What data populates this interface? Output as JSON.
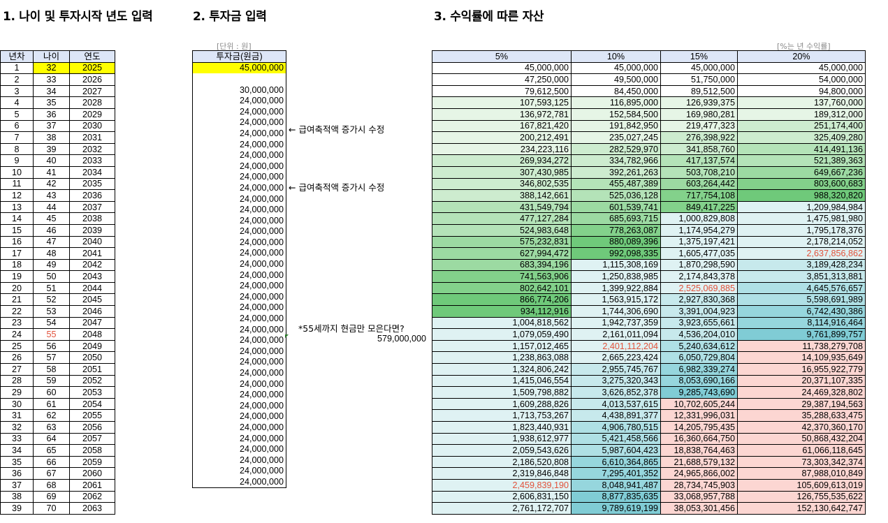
{
  "sections": {
    "s1_title": "1. 나이 및 투자시작 년도 입력",
    "s2_title": "2. 투자금 입력",
    "s3_title": "3. 수익률에 따른 자산",
    "unit_won": "[단위 : 원]",
    "unit_rate": "[%는 년 수익률]"
  },
  "left_table": {
    "headers": [
      "년차",
      "나이",
      "연도"
    ],
    "rows": [
      [
        "1",
        "32",
        "2025"
      ],
      [
        "2",
        "33",
        "2026"
      ],
      [
        "3",
        "34",
        "2027"
      ],
      [
        "4",
        "35",
        "2028"
      ],
      [
        "5",
        "36",
        "2029"
      ],
      [
        "6",
        "37",
        "2030"
      ],
      [
        "7",
        "38",
        "2031"
      ],
      [
        "8",
        "39",
        "2032"
      ],
      [
        "9",
        "40",
        "2033"
      ],
      [
        "10",
        "41",
        "2034"
      ],
      [
        "11",
        "42",
        "2035"
      ],
      [
        "12",
        "43",
        "2036"
      ],
      [
        "13",
        "44",
        "2037"
      ],
      [
        "14",
        "45",
        "2038"
      ],
      [
        "15",
        "46",
        "2039"
      ],
      [
        "16",
        "47",
        "2040"
      ],
      [
        "17",
        "48",
        "2041"
      ],
      [
        "18",
        "49",
        "2042"
      ],
      [
        "19",
        "50",
        "2043"
      ],
      [
        "20",
        "51",
        "2044"
      ],
      [
        "21",
        "52",
        "2045"
      ],
      [
        "22",
        "53",
        "2046"
      ],
      [
        "23",
        "54",
        "2047"
      ],
      [
        "24",
        "55",
        "2048"
      ],
      [
        "25",
        "56",
        "2049"
      ],
      [
        "26",
        "57",
        "2050"
      ],
      [
        "27",
        "58",
        "2051"
      ],
      [
        "28",
        "59",
        "2052"
      ],
      [
        "29",
        "60",
        "2053"
      ],
      [
        "30",
        "61",
        "2054"
      ],
      [
        "31",
        "62",
        "2055"
      ],
      [
        "32",
        "63",
        "2056"
      ],
      [
        "33",
        "64",
        "2057"
      ],
      [
        "34",
        "65",
        "2058"
      ],
      [
        "35",
        "66",
        "2059"
      ],
      [
        "36",
        "67",
        "2060"
      ],
      [
        "37",
        "68",
        "2061"
      ],
      [
        "38",
        "69",
        "2062"
      ],
      [
        "39",
        "70",
        "2063"
      ]
    ]
  },
  "invest_table": {
    "header": "투자금(원금)",
    "values": [
      "45,000,000",
      "",
      "30,000,000",
      "24,000,000",
      "24,000,000",
      "24,000,000",
      "24,000,000",
      "24,000,000",
      "24,000,000",
      "24,000,000",
      "24,000,000",
      "24,000,000",
      "24,000,000",
      "24,000,000",
      "24,000,000",
      "24,000,000",
      "24,000,000",
      "24,000,000",
      "24,000,000",
      "24,000,000",
      "24,000,000",
      "24,000,000",
      "24,000,000",
      "24,000,000",
      "24,000,000",
      "24,000,000",
      "24,000,000",
      "24,000,000",
      "24,000,000",
      "24,000,000",
      "24,000,000",
      "24,000,000",
      "24,000,000",
      "24,000,000",
      "24,000,000",
      "24,000,000",
      "24,000,000",
      "24,000,000",
      "24,000,000"
    ]
  },
  "notes": {
    "note1": "← 급여축적액 증가시 수정",
    "note2": "← 급여축적액 증가시 수정",
    "note3": "*55세까지 현금만 모은다면?",
    "note3_value": "579,000,000"
  },
  "asset_table": {
    "headers": [
      "5%",
      "10%",
      "15%",
      "20%"
    ],
    "rows": [
      [
        "45,000,000",
        "45,000,000",
        "45,000,000",
        "45,000,000"
      ],
      [
        "47,250,000",
        "49,500,000",
        "51,750,000",
        "54,000,000"
      ],
      [
        "79,612,500",
        "84,450,000",
        "89,512,500",
        "94,800,000"
      ],
      [
        "107,593,125",
        "116,895,000",
        "126,939,375",
        "137,760,000"
      ],
      [
        "136,972,781",
        "152,584,500",
        "169,980,281",
        "189,312,000"
      ],
      [
        "167,821,420",
        "191,842,950",
        "219,477,323",
        "251,174,400"
      ],
      [
        "200,212,491",
        "235,027,245",
        "276,398,922",
        "325,409,280"
      ],
      [
        "234,223,116",
        "282,529,970",
        "341,858,760",
        "414,491,136"
      ],
      [
        "269,934,272",
        "334,782,966",
        "417,137,574",
        "521,389,363"
      ],
      [
        "307,430,985",
        "392,261,263",
        "503,708,210",
        "649,667,236"
      ],
      [
        "346,802,535",
        "455,487,389",
        "603,264,442",
        "803,600,683"
      ],
      [
        "388,142,661",
        "525,036,128",
        "717,754,108",
        "988,320,820"
      ],
      [
        "431,549,794",
        "601,539,741",
        "849,417,225",
        "1,209,984,984"
      ],
      [
        "477,127,284",
        "685,693,715",
        "1,000,829,808",
        "1,475,981,980"
      ],
      [
        "524,983,648",
        "778,263,087",
        "1,174,954,279",
        "1,795,178,376"
      ],
      [
        "575,232,831",
        "880,089,396",
        "1,375,197,421",
        "2,178,214,052"
      ],
      [
        "627,994,472",
        "992,098,335",
        "1,605,477,035",
        "2,637,856,862"
      ],
      [
        "683,394,196",
        "1,115,308,169",
        "1,870,298,590",
        "3,189,428,234"
      ],
      [
        "741,563,906",
        "1,250,838,985",
        "2,174,843,378",
        "3,851,313,881"
      ],
      [
        "802,642,101",
        "1,399,922,884",
        "2,525,069,885",
        "4,645,576,657"
      ],
      [
        "866,774,206",
        "1,563,915,172",
        "2,927,830,368",
        "5,598,691,989"
      ],
      [
        "934,112,916",
        "1,744,306,690",
        "3,391,004,923",
        "6,742,430,386"
      ],
      [
        "1,004,818,562",
        "1,942,737,359",
        "3,923,655,661",
        "8,114,916,464"
      ],
      [
        "1,079,059,490",
        "2,161,011,094",
        "4,536,204,010",
        "9,761,899,757"
      ],
      [
        "1,157,012,465",
        "2,401,112,204",
        "5,240,634,612",
        "11,738,279,708"
      ],
      [
        "1,238,863,088",
        "2,665,223,424",
        "6,050,729,804",
        "14,109,935,649"
      ],
      [
        "1,324,806,242",
        "2,955,745,767",
        "6,982,339,274",
        "16,955,922,779"
      ],
      [
        "1,415,046,554",
        "3,275,320,343",
        "8,053,690,166",
        "20,371,107,335"
      ],
      [
        "1,509,798,882",
        "3,626,852,378",
        "9,285,743,690",
        "24,469,328,802"
      ],
      [
        "1,609,288,826",
        "4,013,537,615",
        "10,702,605,244",
        "29,387,194,563"
      ],
      [
        "1,713,753,267",
        "4,438,891,377",
        "12,331,996,031",
        "35,288,633,475"
      ],
      [
        "1,823,440,931",
        "4,906,780,515",
        "14,205,795,435",
        "42,370,360,170"
      ],
      [
        "1,938,612,977",
        "5,421,458,566",
        "16,360,664,750",
        "50,868,432,204"
      ],
      [
        "2,059,543,626",
        "5,987,604,423",
        "18,838,764,463",
        "61,066,118,645"
      ],
      [
        "2,186,520,808",
        "6,610,364,865",
        "21,688,579,132",
        "73,303,342,374"
      ],
      [
        "2,319,846,848",
        "7,295,401,352",
        "24,965,866,002",
        "87,988,010,849"
      ],
      [
        "2,459,839,190",
        "8,048,941,487",
        "28,734,745,903",
        "105,609,613,019"
      ],
      [
        "2,606,831,150",
        "8,877,835,635",
        "33,068,957,788",
        "126,755,535,622"
      ],
      [
        "2,761,172,707",
        "9,789,619,199",
        "38,053,301,456",
        "152,130,642,747"
      ]
    ]
  },
  "colors": {
    "header_bg": "#dde6f7",
    "highlight_yellow": "#ffff00",
    "red_text": "#e2533c",
    "green_scale": [
      "#e6f5e6",
      "#cdeccf",
      "#b4e3b8",
      "#9cdaa2",
      "#83d18b",
      "#6fc97a"
    ],
    "teal_scale": [
      "#dff2f3",
      "#c7e9ec",
      "#afe0e5",
      "#96d6dd",
      "#80ccd5"
    ],
    "pink": "#fcd6d2"
  }
}
